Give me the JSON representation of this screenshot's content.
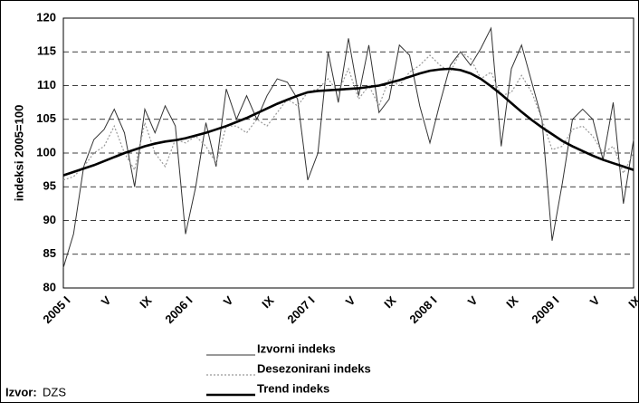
{
  "chart_data": {
    "type": "line",
    "y_axis_label": "indeksi 2005=100",
    "categories": [
      "2005 I",
      null,
      null,
      null,
      "V",
      null,
      null,
      null,
      "IX",
      null,
      null,
      null,
      "2006 I",
      null,
      null,
      null,
      "V",
      null,
      null,
      null,
      "IX",
      null,
      null,
      null,
      "2007 I",
      null,
      null,
      null,
      "V",
      null,
      null,
      null,
      "IX",
      null,
      null,
      null,
      "2008 I",
      null,
      null,
      null,
      "V",
      null,
      null,
      null,
      "IX",
      null,
      null,
      null,
      "2009 I",
      null,
      null,
      null,
      "V",
      null,
      null,
      null,
      "IX"
    ],
    "series": [
      {
        "name": "Izvorni indeks",
        "color": "#333333",
        "dash": "solid",
        "values": [
          83,
          88,
          98,
          102,
          103.5,
          106.5,
          103,
          95,
          106.5,
          103,
          107,
          104,
          88,
          95,
          104.5,
          98,
          109.5,
          105,
          108.5,
          105,
          108.5,
          111,
          110.5,
          108,
          96,
          100,
          115,
          107.5,
          117,
          108.5,
          116,
          106,
          108,
          116,
          114.5,
          107,
          101.5,
          107.5,
          113,
          115,
          113,
          115.5,
          118.5,
          101,
          112.5,
          116,
          110.5,
          105,
          87,
          95.5,
          105,
          106.5,
          105,
          99,
          107.5,
          92.5,
          102
        ]
      },
      {
        "name": "Desezonirani indeks",
        "color": "#999999",
        "dash": "dotted",
        "values": [
          96,
          96.5,
          98,
          100,
          101,
          104,
          100,
          97.5,
          104.5,
          100,
          98,
          102,
          101.5,
          102.5,
          101,
          98.5,
          104,
          104,
          103,
          105,
          104,
          106,
          108,
          107,
          109,
          109.5,
          111,
          109,
          112.5,
          108,
          110,
          107,
          111,
          110,
          112,
          113,
          114.5,
          113,
          112,
          115,
          114,
          111,
          112,
          108.5,
          109,
          111.5,
          109,
          105,
          100.5,
          101,
          103.5,
          104,
          102.5,
          100,
          101,
          97,
          100
        ]
      },
      {
        "name": "Trend indeks",
        "color": "#000000",
        "dash": "thick",
        "values": [
          96.7,
          97.2,
          97.7,
          98.2,
          98.8,
          99.4,
          100,
          100.5,
          101,
          101.4,
          101.7,
          101.9,
          102.2,
          102.6,
          103,
          103.5,
          104,
          104.6,
          105.2,
          105.9,
          106.6,
          107.3,
          107.9,
          108.5,
          109,
          109.2,
          109.3,
          109.4,
          109.5,
          109.6,
          109.8,
          110,
          110.4,
          110.8,
          111.3,
          111.8,
          112.2,
          112.4,
          112.5,
          112.3,
          111.8,
          111,
          109.9,
          108.7,
          107.4,
          106.1,
          104.9,
          103.8,
          102.8,
          101.8,
          101,
          100.3,
          99.6,
          99,
          98.5,
          98,
          97.5
        ]
      }
    ],
    "ylim": [
      80,
      120
    ],
    "yticks": [
      80,
      85,
      90,
      95,
      100,
      105,
      110,
      115,
      120
    ],
    "grid": true,
    "source_label": "Izvor:",
    "source": "DZS"
  }
}
